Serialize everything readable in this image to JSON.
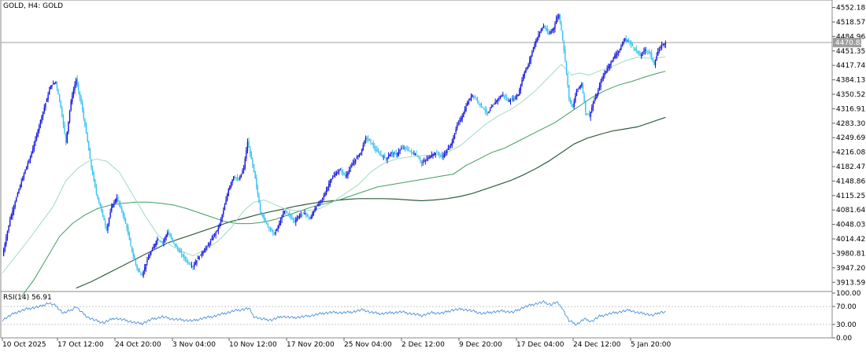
{
  "chart_data": {
    "type": "candlestick",
    "symbol_label": "GOLD, H4:  GOLD",
    "current_price_label": "4470.82",
    "current_price": 4470.82,
    "price_ticks": [
      "4552.18",
      "4518.57",
      "4484.96",
      "4451.35",
      "4417.74",
      "4384.13",
      "4350.52",
      "4316.91",
      "4283.30",
      "4249.69",
      "4216.08",
      "4182.47",
      "4148.86",
      "4115.25",
      "4081.64",
      "4048.03",
      "4014.42",
      "3980.81",
      "3947.20",
      "3913.59"
    ],
    "ylim": [
      3894,
      4566
    ],
    "date_ticks": [
      "10 Oct 2025",
      "17 Oct 12:00",
      "24 Oct 20:00",
      "3 Nov 04:00",
      "10 Nov 12:00",
      "17 Nov 20:00",
      "25 Nov 04:00",
      "2 Dec 12:00",
      "9 Dec 20:00",
      "17 Dec 04:00",
      "24 Dec 12:00",
      "5 Jan 20:00"
    ],
    "rsi_label": "RSI(14) 56.91",
    "rsi_ticks": [
      "100.00",
      "70.00",
      "30.00",
      "0.00"
    ],
    "rsi_levels": [
      70,
      30
    ],
    "colors": {
      "bull": "#1515e0",
      "bear": "#38c2f0",
      "ma_fast": "#9fdcbf",
      "ma_mid": "#3f9e63",
      "ma_slow": "#2e5e3d",
      "rsi": "#4a90d9",
      "grid": "#c8c8c8"
    },
    "close_anchors": [
      [
        0,
        3975
      ],
      [
        6,
        4060
      ],
      [
        12,
        4120
      ],
      [
        18,
        4175
      ],
      [
        22,
        4205
      ],
      [
        26,
        4245
      ],
      [
        30,
        4290
      ],
      [
        34,
        4330
      ],
      [
        38,
        4370
      ],
      [
        42,
        4380
      ],
      [
        46,
        4320
      ],
      [
        50,
        4240
      ],
      [
        54,
        4335
      ],
      [
        58,
        4385
      ],
      [
        62,
        4330
      ],
      [
        66,
        4260
      ],
      [
        70,
        4180
      ],
      [
        74,
        4120
      ],
      [
        78,
        4080
      ],
      [
        82,
        4035
      ],
      [
        86,
        4090
      ],
      [
        90,
        4110
      ],
      [
        94,
        4080
      ],
      [
        98,
        4040
      ],
      [
        102,
        3985
      ],
      [
        106,
        3945
      ],
      [
        110,
        3930
      ],
      [
        114,
        3965
      ],
      [
        118,
        3990
      ],
      [
        122,
        4015
      ],
      [
        126,
        4005
      ],
      [
        130,
        4030
      ],
      [
        134,
        4010
      ],
      [
        138,
        3990
      ],
      [
        142,
        3975
      ],
      [
        146,
        3960
      ],
      [
        150,
        3950
      ],
      [
        154,
        3970
      ],
      [
        158,
        3985
      ],
      [
        162,
        4000
      ],
      [
        166,
        4020
      ],
      [
        170,
        4040
      ],
      [
        174,
        4080
      ],
      [
        178,
        4130
      ],
      [
        182,
        4160
      ],
      [
        186,
        4150
      ],
      [
        190,
        4180
      ],
      [
        193,
        4240
      ],
      [
        196,
        4200
      ],
      [
        199,
        4155
      ],
      [
        203,
        4080
      ],
      [
        206,
        4060
      ],
      [
        210,
        4040
      ],
      [
        214,
        4025
      ],
      [
        218,
        4050
      ],
      [
        222,
        4080
      ],
      [
        226,
        4070
      ],
      [
        230,
        4055
      ],
      [
        234,
        4070
      ],
      [
        238,
        4075
      ],
      [
        242,
        4060
      ],
      [
        246,
        4085
      ],
      [
        250,
        4100
      ],
      [
        254,
        4120
      ],
      [
        258,
        4150
      ],
      [
        262,
        4165
      ],
      [
        266,
        4175
      ],
      [
        270,
        4160
      ],
      [
        274,
        4180
      ],
      [
        278,
        4200
      ],
      [
        282,
        4215
      ],
      [
        286,
        4250
      ],
      [
        290,
        4240
      ],
      [
        294,
        4220
      ],
      [
        298,
        4210
      ],
      [
        302,
        4200
      ],
      [
        306,
        4215
      ],
      [
        310,
        4210
      ],
      [
        314,
        4225
      ],
      [
        318,
        4225
      ],
      [
        322,
        4215
      ],
      [
        326,
        4210
      ],
      [
        330,
        4190
      ],
      [
        334,
        4200
      ],
      [
        338,
        4210
      ],
      [
        342,
        4215
      ],
      [
        346,
        4205
      ],
      [
        350,
        4220
      ],
      [
        354,
        4240
      ],
      [
        358,
        4280
      ],
      [
        362,
        4300
      ],
      [
        366,
        4330
      ],
      [
        370,
        4350
      ],
      [
        374,
        4335
      ],
      [
        378,
        4320
      ],
      [
        382,
        4305
      ],
      [
        386,
        4325
      ],
      [
        390,
        4340
      ],
      [
        394,
        4350
      ],
      [
        398,
        4335
      ],
      [
        402,
        4340
      ],
      [
        406,
        4350
      ],
      [
        410,
        4395
      ],
      [
        414,
        4420
      ],
      [
        418,
        4460
      ],
      [
        422,
        4490
      ],
      [
        426,
        4510
      ],
      [
        430,
        4490
      ],
      [
        434,
        4505
      ],
      [
        436,
        4525
      ],
      [
        438,
        4535
      ],
      [
        440,
        4500
      ],
      [
        443,
        4430
      ],
      [
        446,
        4340
      ],
      [
        449,
        4320
      ],
      [
        452,
        4360
      ],
      [
        456,
        4375
      ],
      [
        459,
        4310
      ],
      [
        462,
        4300
      ],
      [
        465,
        4330
      ],
      [
        468,
        4350
      ],
      [
        471,
        4380
      ],
      [
        474,
        4400
      ],
      [
        478,
        4420
      ],
      [
        482,
        4440
      ],
      [
        486,
        4455
      ],
      [
        490,
        4480
      ],
      [
        494,
        4470
      ],
      [
        498,
        4455
      ],
      [
        502,
        4440
      ],
      [
        506,
        4455
      ],
      [
        510,
        4445
      ],
      [
        513,
        4420
      ],
      [
        516,
        4450
      ],
      [
        519,
        4465
      ],
      [
        522,
        4470
      ]
    ],
    "rsi_anchors": [
      [
        0,
        40
      ],
      [
        10,
        56
      ],
      [
        20,
        65
      ],
      [
        30,
        70
      ],
      [
        36,
        78
      ],
      [
        42,
        72
      ],
      [
        48,
        55
      ],
      [
        54,
        62
      ],
      [
        58,
        70
      ],
      [
        62,
        58
      ],
      [
        68,
        45
      ],
      [
        74,
        38
      ],
      [
        80,
        34
      ],
      [
        88,
        44
      ],
      [
        96,
        40
      ],
      [
        104,
        34
      ],
      [
        110,
        32
      ],
      [
        118,
        42
      ],
      [
        126,
        47
      ],
      [
        134,
        42
      ],
      [
        142,
        40
      ],
      [
        150,
        38
      ],
      [
        158,
        44
      ],
      [
        166,
        48
      ],
      [
        174,
        54
      ],
      [
        182,
        60
      ],
      [
        190,
        64
      ],
      [
        194,
        66
      ],
      [
        198,
        48
      ],
      [
        204,
        42
      ],
      [
        212,
        40
      ],
      [
        220,
        48
      ],
      [
        228,
        45
      ],
      [
        236,
        47
      ],
      [
        244,
        50
      ],
      [
        252,
        55
      ],
      [
        260,
        57
      ],
      [
        268,
        56
      ],
      [
        276,
        58
      ],
      [
        284,
        63
      ],
      [
        290,
        57
      ],
      [
        298,
        54
      ],
      [
        306,
        56
      ],
      [
        314,
        58
      ],
      [
        322,
        54
      ],
      [
        330,
        50
      ],
      [
        338,
        56
      ],
      [
        346,
        55
      ],
      [
        354,
        62
      ],
      [
        362,
        64
      ],
      [
        370,
        60
      ],
      [
        378,
        54
      ],
      [
        386,
        58
      ],
      [
        394,
        60
      ],
      [
        402,
        57
      ],
      [
        410,
        68
      ],
      [
        418,
        75
      ],
      [
        426,
        80
      ],
      [
        432,
        74
      ],
      [
        436,
        80
      ],
      [
        440,
        70
      ],
      [
        446,
        38
      ],
      [
        452,
        30
      ],
      [
        458,
        42
      ],
      [
        464,
        37
      ],
      [
        470,
        48
      ],
      [
        478,
        54
      ],
      [
        486,
        58
      ],
      [
        494,
        62
      ],
      [
        500,
        56
      ],
      [
        506,
        54
      ],
      [
        512,
        50
      ],
      [
        518,
        58
      ],
      [
        522,
        57
      ]
    ],
    "ma_fast_anchors": [
      [
        0,
        3935
      ],
      [
        20,
        4010
      ],
      [
        40,
        4090
      ],
      [
        50,
        4150
      ],
      [
        60,
        4180
      ],
      [
        68,
        4195
      ],
      [
        74,
        4200
      ],
      [
        82,
        4195
      ],
      [
        92,
        4170
      ],
      [
        102,
        4120
      ],
      [
        112,
        4070
      ],
      [
        122,
        4025
      ],
      [
        132,
        4000
      ],
      [
        142,
        3985
      ],
      [
        150,
        3975
      ],
      [
        160,
        3990
      ],
      [
        170,
        4010
      ],
      [
        180,
        4040
      ],
      [
        190,
        4080
      ],
      [
        198,
        4100
      ],
      [
        206,
        4105
      ],
      [
        214,
        4095
      ],
      [
        222,
        4085
      ],
      [
        230,
        4080
      ],
      [
        240,
        4080
      ],
      [
        250,
        4085
      ],
      [
        260,
        4100
      ],
      [
        270,
        4120
      ],
      [
        280,
        4140
      ],
      [
        290,
        4170
      ],
      [
        300,
        4190
      ],
      [
        310,
        4200
      ],
      [
        320,
        4205
      ],
      [
        330,
        4208
      ],
      [
        340,
        4210
      ],
      [
        350,
        4215
      ],
      [
        360,
        4230
      ],
      [
        370,
        4255
      ],
      [
        380,
        4280
      ],
      [
        390,
        4300
      ],
      [
        400,
        4315
      ],
      [
        410,
        4335
      ],
      [
        420,
        4360
      ],
      [
        430,
        4390
      ],
      [
        440,
        4420
      ],
      [
        448,
        4395
      ],
      [
        454,
        4400
      ],
      [
        462,
        4395
      ],
      [
        470,
        4405
      ],
      [
        480,
        4415
      ],
      [
        490,
        4428
      ],
      [
        500,
        4437
      ],
      [
        510,
        4434
      ],
      [
        522,
        4437
      ]
    ],
    "ma_mid_anchors": [
      [
        15,
        3880
      ],
      [
        25,
        3920
      ],
      [
        35,
        3970
      ],
      [
        45,
        4020
      ],
      [
        55,
        4050
      ],
      [
        65,
        4070
      ],
      [
        75,
        4085
      ],
      [
        85,
        4093
      ],
      [
        95,
        4097
      ],
      [
        105,
        4100
      ],
      [
        115,
        4100
      ],
      [
        125,
        4097
      ],
      [
        135,
        4093
      ],
      [
        145,
        4085
      ],
      [
        155,
        4075
      ],
      [
        165,
        4065
      ],
      [
        175,
        4055
      ],
      [
        185,
        4050
      ],
      [
        195,
        4050
      ],
      [
        205,
        4053
      ],
      [
        215,
        4060
      ],
      [
        225,
        4070
      ],
      [
        235,
        4080
      ],
      [
        245,
        4090
      ],
      [
        255,
        4097
      ],
      [
        265,
        4105
      ],
      [
        275,
        4115
      ],
      [
        285,
        4125
      ],
      [
        295,
        4135
      ],
      [
        305,
        4140
      ],
      [
        315,
        4145
      ],
      [
        325,
        4150
      ],
      [
        335,
        4155
      ],
      [
        345,
        4160
      ],
      [
        355,
        4165
      ],
      [
        365,
        4185
      ],
      [
        375,
        4200
      ],
      [
        385,
        4215
      ],
      [
        395,
        4225
      ],
      [
        405,
        4240
      ],
      [
        415,
        4255
      ],
      [
        425,
        4270
      ],
      [
        435,
        4285
      ],
      [
        445,
        4305
      ],
      [
        455,
        4325
      ],
      [
        465,
        4345
      ],
      [
        475,
        4360
      ],
      [
        485,
        4372
      ],
      [
        495,
        4380
      ],
      [
        505,
        4390
      ],
      [
        515,
        4399
      ],
      [
        522,
        4404
      ]
    ],
    "ma_slow_anchors": [
      [
        58,
        3900
      ],
      [
        70,
        3915
      ],
      [
        80,
        3930
      ],
      [
        90,
        3945
      ],
      [
        100,
        3960
      ],
      [
        110,
        3975
      ],
      [
        120,
        3990
      ],
      [
        130,
        4005
      ],
      [
        140,
        4015
      ],
      [
        150,
        4025
      ],
      [
        160,
        4035
      ],
      [
        170,
        4045
      ],
      [
        180,
        4055
      ],
      [
        190,
        4062
      ],
      [
        200,
        4070
      ],
      [
        210,
        4077
      ],
      [
        220,
        4083
      ],
      [
        230,
        4090
      ],
      [
        240,
        4095
      ],
      [
        250,
        4100
      ],
      [
        260,
        4103
      ],
      [
        270,
        4106
      ],
      [
        280,
        4108
      ],
      [
        290,
        4108
      ],
      [
        300,
        4108
      ],
      [
        310,
        4107
      ],
      [
        320,
        4105
      ],
      [
        330,
        4103
      ],
      [
        340,
        4105
      ],
      [
        350,
        4108
      ],
      [
        360,
        4113
      ],
      [
        370,
        4120
      ],
      [
        380,
        4130
      ],
      [
        390,
        4140
      ],
      [
        400,
        4150
      ],
      [
        410,
        4163
      ],
      [
        420,
        4178
      ],
      [
        430,
        4195
      ],
      [
        440,
        4215
      ],
      [
        450,
        4235
      ],
      [
        460,
        4248
      ],
      [
        470,
        4257
      ],
      [
        480,
        4265
      ],
      [
        490,
        4270
      ],
      [
        500,
        4275
      ],
      [
        510,
        4285
      ],
      [
        522,
        4297
      ]
    ]
  }
}
